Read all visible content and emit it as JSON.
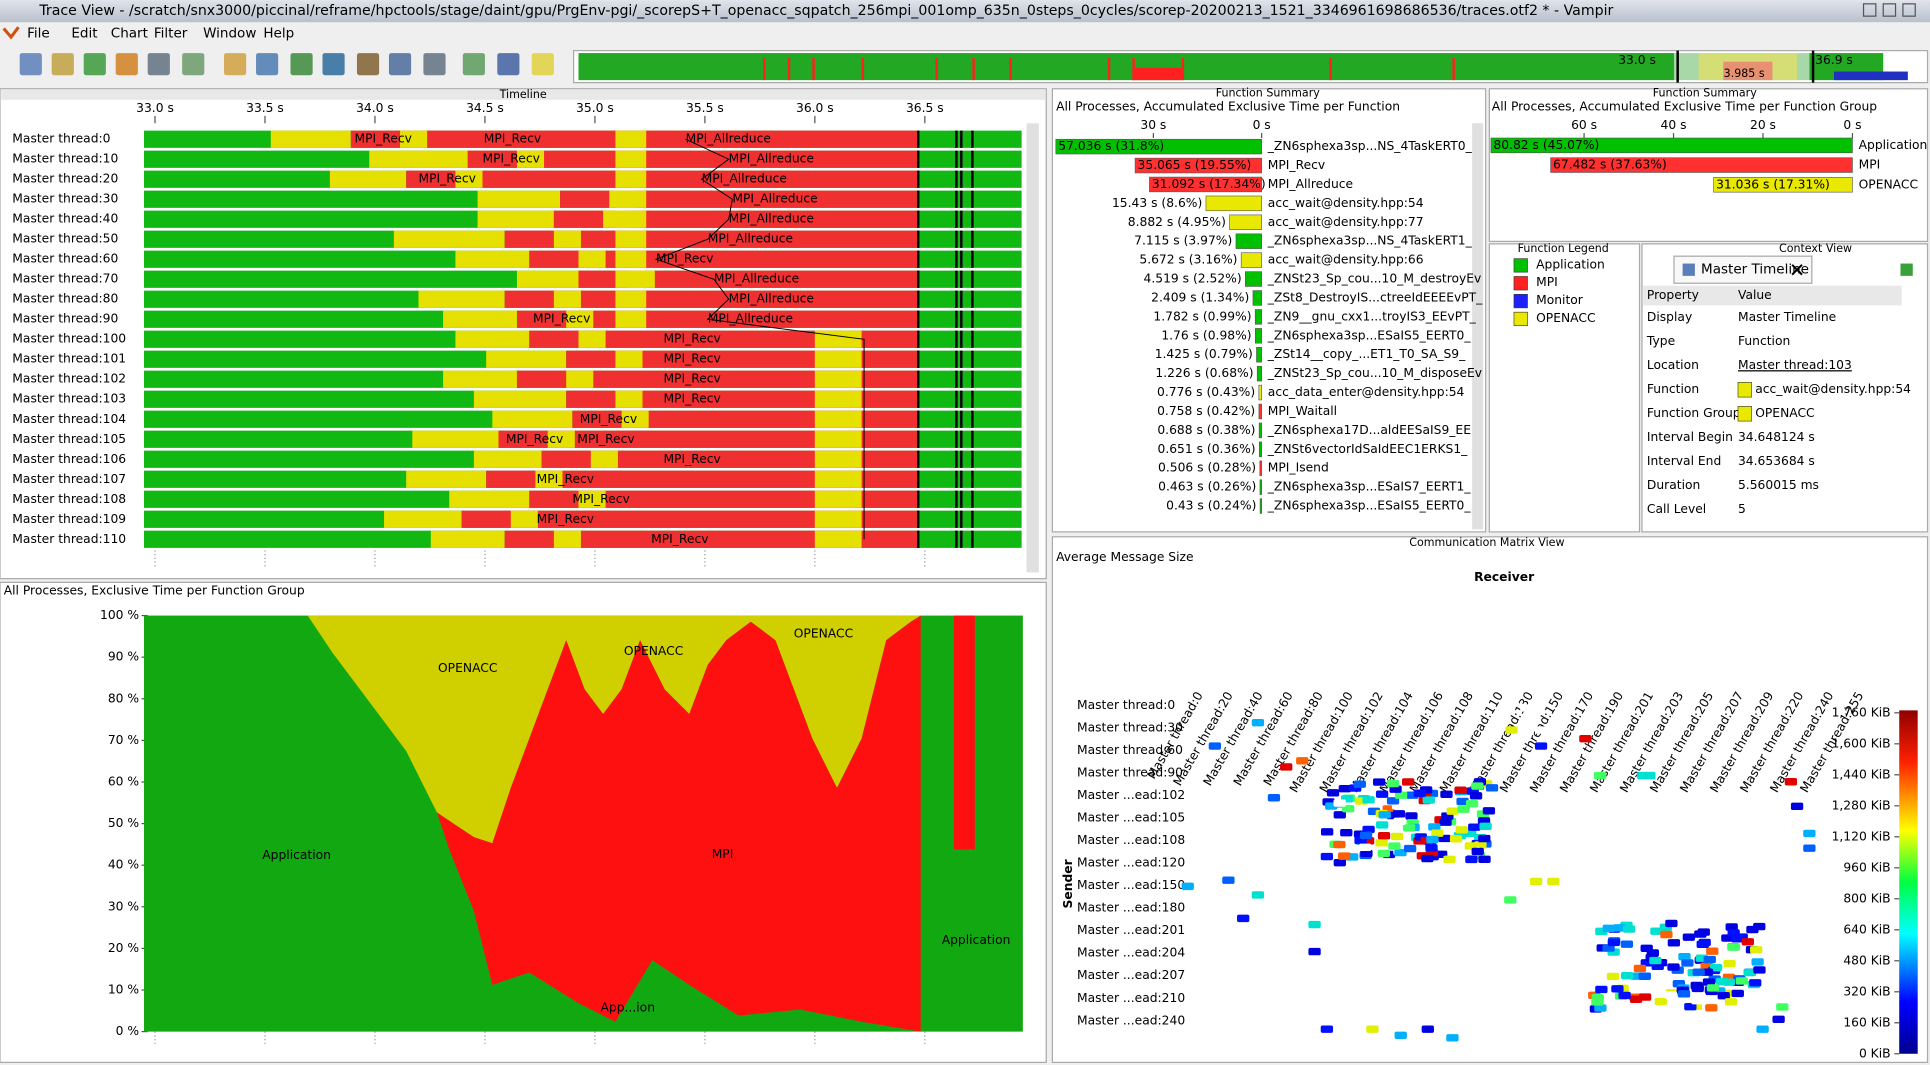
{
  "window": {
    "title": "Trace View - /scratch/snx3000/piccinal/reframe/hpctools/stage/daint/gpu/PrgEnv-pgi/_scorepS+T_openacc_sqpatch_256mpi_001omp_635n_0steps_0cycles/scorep-20200213_1521_3346961698686536/traces.otf2 * - Vampir"
  },
  "menu": [
    "File",
    "Edit",
    "Chart",
    "Filter",
    "Window",
    "Help"
  ],
  "overview": {
    "labels": [
      "33.0 s",
      "3.985 s",
      "36.9 s"
    ]
  },
  "timeline": {
    "title": "Timeline",
    "xlim": [
      32.95,
      36.94
    ],
    "xticks": [
      {
        "value": 33.0,
        "label": "33.0 s"
      },
      {
        "value": 33.5,
        "label": "33.5 s"
      },
      {
        "value": 34.0,
        "label": "34.0 s"
      },
      {
        "value": 34.5,
        "label": "34.5 s"
      },
      {
        "value": 35.0,
        "label": "35.0 s"
      },
      {
        "value": 35.5,
        "label": "35.5 s"
      },
      {
        "value": 36.0,
        "label": "36.0 s"
      },
      {
        "value": 36.5,
        "label": "36.5 s"
      }
    ],
    "threads": [
      {
        "name": "Master thread:0",
        "labels": [
          "MPI_Recv",
          "MPI_Recv",
          "MPI_Allreduce"
        ]
      },
      {
        "name": "Master thread:10",
        "labels": [
          "MPI_Recv",
          "MPI_Allreduce"
        ]
      },
      {
        "name": "Master thread:20",
        "labels": [
          "MPI_Recv",
          "MPI_Allreduce"
        ]
      },
      {
        "name": "Master thread:30",
        "labels": [
          "MPI_Allreduce"
        ]
      },
      {
        "name": "Master thread:40",
        "labels": [
          "MPI_Allreduce"
        ]
      },
      {
        "name": "Master thread:50",
        "labels": [
          "MPI_Allreduce"
        ]
      },
      {
        "name": "Master thread:60",
        "labels": [
          "MPI_Recv"
        ]
      },
      {
        "name": "Master thread:70",
        "labels": [
          "MPI_Allreduce"
        ]
      },
      {
        "name": "Master thread:80",
        "labels": [
          "MPI_Allreduce"
        ]
      },
      {
        "name": "Master thread:90",
        "labels": [
          "MPI_Recv",
          "MPI_Allreduce"
        ]
      },
      {
        "name": "Master thread:100",
        "labels": [
          "MPI_Recv"
        ]
      },
      {
        "name": "Master thread:101",
        "labels": [
          "MPI_Recv"
        ]
      },
      {
        "name": "Master thread:102",
        "labels": [
          "MPI_Recv"
        ]
      },
      {
        "name": "Master thread:103",
        "labels": [
          "MPI_Recv"
        ]
      },
      {
        "name": "Master thread:104",
        "labels": [
          "MPI_Recv"
        ]
      },
      {
        "name": "Master thread:105",
        "labels": [
          "MPI_Recv",
          "MPI_Recv"
        ]
      },
      {
        "name": "Master thread:106",
        "labels": [
          "MPI_Recv"
        ]
      },
      {
        "name": "Master thread:107",
        "labels": [
          "MPI_Recv"
        ]
      },
      {
        "name": "Master thread:108",
        "labels": [
          "MPI_Recv"
        ]
      },
      {
        "name": "Master thread:109",
        "labels": [
          "MPI_Recv"
        ]
      },
      {
        "name": "Master thread:110",
        "labels": [
          "MPI_Recv"
        ]
      }
    ]
  },
  "function_summary": {
    "title": "Function Summary",
    "subtitle": "All Processes, Accumulated Exclusive Time per Function",
    "xlim": [
      57.3,
      0
    ],
    "xticks": [
      {
        "value": 30,
        "label": "30 s"
      },
      {
        "value": 0,
        "label": "0 s"
      }
    ],
    "rows": [
      {
        "name": "_ZN6sphexa3sp...NS_4TaskERT0_",
        "value": 57.036,
        "label": "57.036 s (31.8%)",
        "color": "#00c000"
      },
      {
        "name": "MPI_Recv",
        "value": 35.065,
        "label": "35.065 s (19.55%)",
        "color": "#ff3030"
      },
      {
        "name": "MPI_Allreduce",
        "value": 31.092,
        "label": "31.092 s (17.34%)",
        "color": "#ff3030"
      },
      {
        "name": "acc_wait@density.hpp:54",
        "value": 15.43,
        "label": "15.43 s (8.6%)",
        "color": "#e8e800"
      },
      {
        "name": "acc_wait@density.hpp:77",
        "value": 8.882,
        "label": "8.882 s (4.95%)",
        "color": "#e8e800"
      },
      {
        "name": "_ZN6sphexa3sp...NS_4TaskERT1_",
        "value": 7.115,
        "label": "7.115 s (3.97%)",
        "color": "#00c000"
      },
      {
        "name": "acc_wait@density.hpp:66",
        "value": 5.672,
        "label": "5.672 s (3.16%)",
        "color": "#e8e800"
      },
      {
        "name": "_ZNSt23_Sp_cou...10_M_destroyEv",
        "value": 4.519,
        "label": "4.519 s (2.52%)",
        "color": "#00c000"
      },
      {
        "name": "_ZSt8_DestroyIS...ctreeIdEEEEvPT_",
        "value": 2.409,
        "label": "2.409 s (1.34%)",
        "color": "#00c000"
      },
      {
        "name": "_ZN9__gnu_cxx1...troyIS3_EEvPT_",
        "value": 1.782,
        "label": "1.782 s (0.99%)",
        "color": "#00c000"
      },
      {
        "name": "_ZN6sphexa3sp...ESaIS5_EERT0_",
        "value": 1.76,
        "label": "1.76 s (0.98%)",
        "color": "#00c000"
      },
      {
        "name": "_ZSt14__copy_...ET1_T0_SA_S9_",
        "value": 1.425,
        "label": "1.425 s (0.79%)",
        "color": "#00c000"
      },
      {
        "name": "_ZNSt23_Sp_cou...10_M_disposeEv",
        "value": 1.226,
        "label": "1.226 s (0.68%)",
        "color": "#00c000"
      },
      {
        "name": "acc_data_enter@density.hpp:54",
        "value": 0.776,
        "label": "0.776 s (0.43%)",
        "color": "#e8e800"
      },
      {
        "name": "MPI_Waitall",
        "value": 0.758,
        "label": "0.758 s (0.42%)",
        "color": "#ff3030"
      },
      {
        "name": "_ZN6sphexa17D...aldEESaIS9_EE",
        "value": 0.688,
        "label": "0.688 s (0.38%)",
        "color": "#00c000"
      },
      {
        "name": "_ZNSt6vectorIdSaIdEEC1ERKS1_",
        "value": 0.651,
        "label": "0.651 s (0.36%)",
        "color": "#00c000"
      },
      {
        "name": "MPI_Isend",
        "value": 0.506,
        "label": "0.506 s (0.28%)",
        "color": "#ff3030"
      },
      {
        "name": "_ZN6sphexa3sp...ESaIS7_EERT1_",
        "value": 0.463,
        "label": "0.463 s (0.26%)",
        "color": "#00c000"
      },
      {
        "name": "_ZN6sphexa3sp...ESaIS5_EERT0_",
        "value": 0.43,
        "label": "0.43 s (0.24%)",
        "color": "#00c000"
      }
    ]
  },
  "group_summary": {
    "title": "Function Summary",
    "subtitle": "All Processes, Accumulated Exclusive Time per Function Group",
    "xlim": [
      80.9,
      0
    ],
    "xticks": [
      {
        "value": 60,
        "label": "60 s"
      },
      {
        "value": 40,
        "label": "40 s"
      },
      {
        "value": 20,
        "label": "20 s"
      },
      {
        "value": 0,
        "label": "0 s"
      }
    ],
    "rows": [
      {
        "name": "Application",
        "value": 80.82,
        "label": "80.82 s (45.07%)",
        "color": "#00c000"
      },
      {
        "name": "MPI",
        "value": 67.482,
        "label": "67.482 s (37.63%)",
        "color": "#ff3030"
      },
      {
        "name": "OPENACC",
        "value": 31.036,
        "label": "31.036 s (17.31%)",
        "color": "#e8e800"
      }
    ]
  },
  "legend": {
    "title": "Function Legend",
    "items": [
      {
        "name": "Application",
        "color": "#00c000"
      },
      {
        "name": "MPI",
        "color": "#ff2020"
      },
      {
        "name": "Monitor",
        "color": "#2020ff"
      },
      {
        "name": "OPENACC",
        "color": "#e8e800"
      }
    ]
  },
  "context_view": {
    "title": "Context View",
    "tab": "Master Timeline",
    "headers": [
      "Property",
      "Value"
    ],
    "rows": [
      [
        "Display",
        "Master Timeline"
      ],
      [
        "Type",
        "Function"
      ],
      [
        "Location",
        "Master thread:103"
      ],
      [
        "Function",
        "acc_wait@density.hpp:54"
      ],
      [
        "Function Group",
        "OPENACC"
      ],
      [
        "Interval Begin",
        "34.648124 s"
      ],
      [
        "Interval End",
        "34.653684 s"
      ],
      [
        "Duration",
        "5.560015 ms"
      ],
      [
        "Call Level",
        "5"
      ]
    ]
  },
  "area_chart": {
    "title": "All Processes, Exclusive Time per Function Group",
    "ylim": [
      0,
      100
    ],
    "yticks": [
      {
        "value": 0,
        "label": "0 %"
      },
      {
        "value": 10,
        "label": "10 %"
      },
      {
        "value": 20,
        "label": "20 %"
      },
      {
        "value": 30,
        "label": "30 %"
      },
      {
        "value": 40,
        "label": "40 %"
      },
      {
        "value": 50,
        "label": "50 %"
      },
      {
        "value": 60,
        "label": "60 %"
      },
      {
        "value": 70,
        "label": "70 %"
      },
      {
        "value": 80,
        "label": "80 %"
      },
      {
        "value": 90,
        "label": "90 %"
      },
      {
        "value": 100,
        "label": "100 %"
      }
    ],
    "labels": [
      "OPENACC",
      "OPENACC",
      "OPENACC",
      "Application",
      "MPI",
      "App...ion",
      "Application"
    ]
  },
  "comm_matrix": {
    "title": "Communication Matrix View",
    "subtitle": "Average Message Size",
    "x_title": "Receiver",
    "y_title": "Sender",
    "x_labels": [
      "Master thread:0",
      "Master thread:20",
      "Master thread:40",
      "Master thread:60",
      "Master thread:80",
      "Master thread:100",
      "Master thread:102",
      "Master thread:104",
      "Master thread:106",
      "Master thread:108",
      "Master thread:110",
      "Master thread:130",
      "Master thread:150",
      "Master thread:170",
      "Master thread:190",
      "Master thread:201",
      "Master thread:203",
      "Master thread:205",
      "Master thread:207",
      "Master thread:209",
      "Master thread:220",
      "Master thread:240",
      "Master thread:255"
    ],
    "y_labels": [
      "Master thread:0",
      "Master thread:30",
      "Master thread:60",
      "Master thread:90",
      "Master ...ead:102",
      "Master ...ead:105",
      "Master ...ead:108",
      "Master ...ead:120",
      "Master ...ead:150",
      "Master ...ead:180",
      "Master ...ead:201",
      "Master ...ead:204",
      "Master ...ead:207",
      "Master ...ead:210",
      "Master ...ead:240"
    ],
    "clim": [
      0,
      1760
    ],
    "cticks": [
      {
        "value": 1760,
        "label": "1,760 KiB"
      },
      {
        "value": 1600,
        "label": "1,600 KiB"
      },
      {
        "value": 1440,
        "label": "1,440 KiB"
      },
      {
        "value": 1280,
        "label": "1,280 KiB"
      },
      {
        "value": 1120,
        "label": "1,120 KiB"
      },
      {
        "value": 960,
        "label": "960 KiB"
      },
      {
        "value": 800,
        "label": "800 KiB"
      },
      {
        "value": 640,
        "label": "640 KiB"
      },
      {
        "value": 480,
        "label": "480 KiB"
      },
      {
        "value": 320,
        "label": "320 KiB"
      },
      {
        "value": 160,
        "label": "160 KiB"
      },
      {
        "value": 0,
        "label": "0 KiB"
      }
    ]
  }
}
